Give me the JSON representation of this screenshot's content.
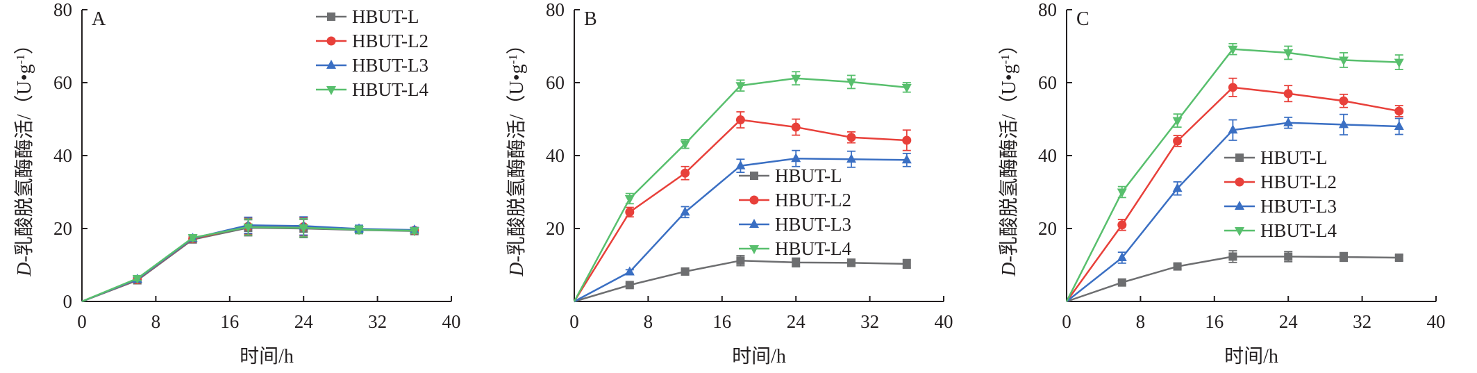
{
  "colors": {
    "HBUT-L": "#6d6e70",
    "HBUT-L2": "#e8403a",
    "HBUT-L3": "#3a6fc3",
    "HBUT-L4": "#58bf6d",
    "axis": "#231f20"
  },
  "chart_data": [
    {
      "type": "line",
      "panel_label": "A",
      "xlabel": "时间/h",
      "ylabel_prefix": "D",
      "ylabel_main": "-乳酸脱氢酶酶活/（U•g",
      "ylabel_sup": "-1",
      "ylabel_end": "）",
      "xlim": [
        0,
        40
      ],
      "ylim": [
        0,
        80
      ],
      "xticks": [
        0,
        8,
        16,
        24,
        32,
        40
      ],
      "yticks": [
        20,
        40,
        60,
        80
      ],
      "y_tick_labels": [
        "20",
        "40",
        "60",
        "80"
      ],
      "x_tick_labels": [
        "0",
        "8",
        "16",
        "24",
        "32",
        "40"
      ],
      "y_zero_label": "0",
      "legend": "top-right",
      "x": [
        0,
        6,
        12,
        18,
        24,
        30,
        36
      ],
      "series": [
        {
          "name": "HBUT-L",
          "marker": "square",
          "values": [
            0,
            5.8,
            17.0,
            20.2,
            20.0,
            19.6,
            19.3
          ],
          "errors": [
            0,
            0.6,
            0.8,
            2.2,
            2.5,
            1.0,
            0.7
          ]
        },
        {
          "name": "HBUT-L2",
          "marker": "circle",
          "values": [
            0,
            6.0,
            17.2,
            20.6,
            20.5,
            19.8,
            19.5
          ],
          "errors": [
            0,
            0.6,
            0.8,
            2.2,
            2.5,
            1.0,
            0.7
          ]
        },
        {
          "name": "HBUT-L3",
          "marker": "triangle-up",
          "values": [
            0,
            6.1,
            17.3,
            20.9,
            20.7,
            19.9,
            19.6
          ],
          "errors": [
            0,
            0.6,
            0.8,
            2.2,
            2.5,
            1.0,
            0.7
          ]
        },
        {
          "name": "HBUT-L4",
          "marker": "triangle-down",
          "values": [
            0,
            6.3,
            17.5,
            20.4,
            20.2,
            19.7,
            19.4
          ],
          "errors": [
            0,
            0.6,
            0.8,
            2.2,
            2.5,
            1.0,
            0.7
          ]
        }
      ]
    },
    {
      "type": "line",
      "panel_label": "B",
      "xlabel": "时间/h",
      "ylabel_prefix": "D",
      "ylabel_main": "-乳酸脱氢酶酶活/（U•g",
      "ylabel_sup": "-1",
      "ylabel_end": "）",
      "xlim": [
        0,
        40
      ],
      "ylim": [
        0,
        80
      ],
      "xticks": [
        0,
        8,
        16,
        24,
        32,
        40
      ],
      "yticks": [
        20,
        40,
        60,
        80
      ],
      "y_tick_labels": [
        "20",
        "40",
        "60",
        "80"
      ],
      "x_tick_labels": [
        "0",
        "8",
        "16",
        "24",
        "32",
        "40"
      ],
      "y_zero_label": "",
      "legend": "center-right",
      "x": [
        0,
        6,
        12,
        18,
        24,
        30,
        36
      ],
      "series": [
        {
          "name": "HBUT-L",
          "marker": "square",
          "values": [
            0,
            4.5,
            8.2,
            11.2,
            10.7,
            10.6,
            10.3
          ],
          "errors": [
            0,
            0.5,
            0.6,
            1.4,
            1.2,
            1.0,
            1.2
          ]
        },
        {
          "name": "HBUT-L2",
          "marker": "circle",
          "values": [
            0,
            24.5,
            35.2,
            49.8,
            47.8,
            45.0,
            44.2
          ],
          "errors": [
            0,
            1.3,
            1.8,
            2.2,
            2.2,
            1.5,
            2.8
          ]
        },
        {
          "name": "HBUT-L3",
          "marker": "triangle-up",
          "values": [
            0,
            8.1,
            24.5,
            37.2,
            39.2,
            39.0,
            38.8
          ],
          "errors": [
            0,
            0.6,
            1.5,
            1.8,
            2.2,
            2.2,
            1.8
          ]
        },
        {
          "name": "HBUT-L4",
          "marker": "triangle-down",
          "values": [
            0,
            28.2,
            43.2,
            59.2,
            61.2,
            60.2,
            58.7
          ],
          "errors": [
            0,
            1.4,
            1.2,
            1.5,
            1.8,
            1.8,
            1.3
          ]
        }
      ]
    },
    {
      "type": "line",
      "panel_label": "C",
      "xlabel": "时间/h",
      "ylabel_prefix": "D",
      "ylabel_main": "-乳酸脱氢酶酶活/（U•g",
      "ylabel_sup": "-1",
      "ylabel_end": "）",
      "xlim": [
        0,
        40
      ],
      "ylim": [
        0,
        80
      ],
      "xticks": [
        0,
        8,
        16,
        24,
        32,
        40
      ],
      "yticks": [
        20,
        40,
        60,
        80
      ],
      "y_tick_labels": [
        "20",
        "40",
        "60",
        "80"
      ],
      "x_tick_labels": [
        "0",
        "8",
        "16",
        "24",
        "32",
        "40"
      ],
      "y_zero_label": "",
      "legend": "center-right",
      "x": [
        0,
        6,
        12,
        18,
        24,
        30,
        36
      ],
      "series": [
        {
          "name": "HBUT-L",
          "marker": "square",
          "values": [
            0,
            5.2,
            9.6,
            12.3,
            12.3,
            12.2,
            12.0
          ],
          "errors": [
            0,
            0.5,
            0.7,
            1.6,
            1.4,
            1.2,
            0.7
          ]
        },
        {
          "name": "HBUT-L2",
          "marker": "circle",
          "values": [
            0,
            21.0,
            44.0,
            58.7,
            57.0,
            55.0,
            52.2
          ],
          "errors": [
            0,
            1.5,
            1.5,
            2.5,
            2.2,
            1.8,
            1.5
          ]
        },
        {
          "name": "HBUT-L3",
          "marker": "triangle-up",
          "values": [
            0,
            12.0,
            31.0,
            47.0,
            49.0,
            48.5,
            48.0
          ],
          "errors": [
            0,
            1.5,
            1.8,
            2.8,
            1.5,
            2.8,
            2.2
          ]
        },
        {
          "name": "HBUT-L4",
          "marker": "triangle-down",
          "values": [
            0,
            30.0,
            49.6,
            69.2,
            68.2,
            66.2,
            65.6
          ],
          "errors": [
            0,
            1.5,
            1.8,
            1.5,
            1.8,
            2.0,
            2.0
          ]
        }
      ]
    }
  ]
}
